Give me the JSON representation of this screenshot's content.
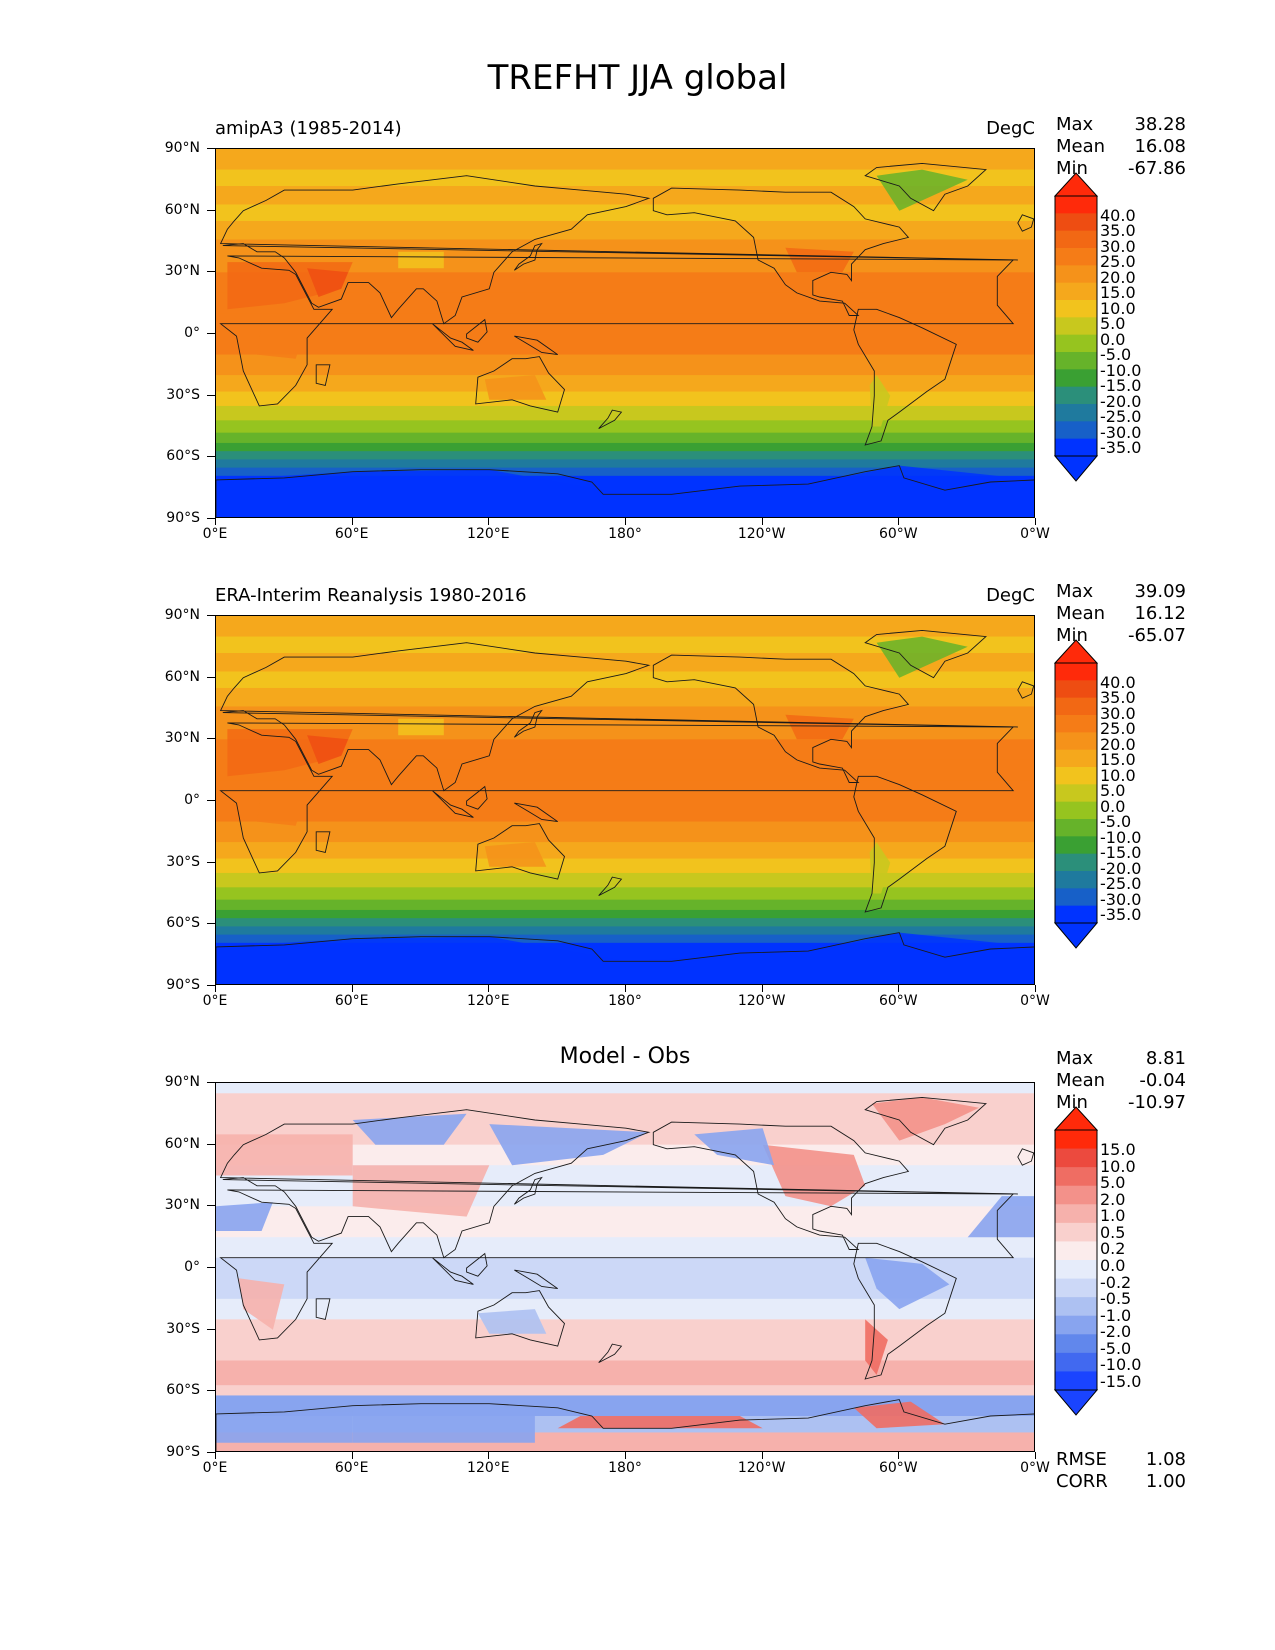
{
  "title": "TREFHT JJA global",
  "chart_data": [
    {
      "type": "heatmap",
      "title_left": "amipA3 (1985-2014)",
      "title_right": "DegC",
      "stats": [
        {
          "k": "Max",
          "v": "38.28"
        },
        {
          "k": "Mean",
          "v": "16.08"
        },
        {
          "k": "Min",
          "v": "-67.86"
        }
      ],
      "colorbar_labels": [
        "40.0",
        "35.0",
        "30.0",
        "25.0",
        "20.0",
        "15.0",
        "10.0",
        "5.0",
        "0.0",
        "-5.0",
        "-10.0",
        "-15.0",
        "-20.0",
        "-25.0",
        "-30.0",
        "-35.0"
      ],
      "x_ticks": [
        "0°E",
        "60°E",
        "120°E",
        "180°",
        "120°W",
        "60°W",
        "0°W"
      ],
      "y_ticks": [
        "90°N",
        "60°N",
        "30°N",
        "0°",
        "30°S",
        "60°S",
        "90°S"
      ]
    },
    {
      "type": "heatmap",
      "title_left": "ERA-Interim Reanalysis 1980-2016",
      "title_right": "DegC",
      "stats": [
        {
          "k": "Max",
          "v": "39.09"
        },
        {
          "k": "Mean",
          "v": "16.12"
        },
        {
          "k": "Min",
          "v": "-65.07"
        }
      ],
      "colorbar_labels": [
        "40.0",
        "35.0",
        "30.0",
        "25.0",
        "20.0",
        "15.0",
        "10.0",
        "5.0",
        "0.0",
        "-5.0",
        "-10.0",
        "-15.0",
        "-20.0",
        "-25.0",
        "-30.0",
        "-35.0"
      ],
      "x_ticks": [
        "0°E",
        "60°E",
        "120°E",
        "180°",
        "120°W",
        "60°W",
        "0°W"
      ],
      "y_ticks": [
        "90°N",
        "60°N",
        "30°N",
        "0°",
        "30°S",
        "60°S",
        "90°S"
      ]
    },
    {
      "type": "heatmap",
      "title_center": "Model - Obs",
      "stats": [
        {
          "k": "Max",
          "v": "8.81"
        },
        {
          "k": "Mean",
          "v": "-0.04"
        },
        {
          "k": "Min",
          "v": "-10.97"
        }
      ],
      "colorbar_labels": [
        "15.0",
        "10.0",
        "5.0",
        "2.0",
        "1.0",
        "0.5",
        "0.2",
        "0.0",
        "-0.2",
        "-0.5",
        "-1.0",
        "-2.0",
        "-5.0",
        "-10.0",
        "-15.0"
      ],
      "x_ticks": [
        "0°E",
        "60°E",
        "120°E",
        "180°",
        "120°W",
        "60°W",
        "0°W"
      ],
      "y_ticks": [
        "90°N",
        "60°N",
        "30°N",
        "0°",
        "30°S",
        "60°S",
        "90°S"
      ],
      "bottom_stats": [
        {
          "k": "RMSE",
          "v": "1.08"
        },
        {
          "k": "CORR",
          "v": "1.00"
        }
      ]
    }
  ],
  "colors": {
    "temp": [
      "#0033ff",
      "#1760c8",
      "#1f7a9e",
      "#2b8f7a",
      "#3aa033",
      "#66b32a",
      "#96c41f",
      "#c8c81e",
      "#f2c31d",
      "#f5a81c",
      "#f5921a",
      "#f57c17",
      "#f26814",
      "#ee4d12",
      "#ff2a0a"
    ],
    "diff": [
      "#1a44ff",
      "#4169f0",
      "#6187ec",
      "#88a4ef",
      "#adc1f2",
      "#ccd8f7",
      "#e6ecfa",
      "#fbecec",
      "#f9d0cd",
      "#f6b1ac",
      "#f3918a",
      "#ef6d63",
      "#ec4a3e",
      "#ff2a0a"
    ]
  }
}
